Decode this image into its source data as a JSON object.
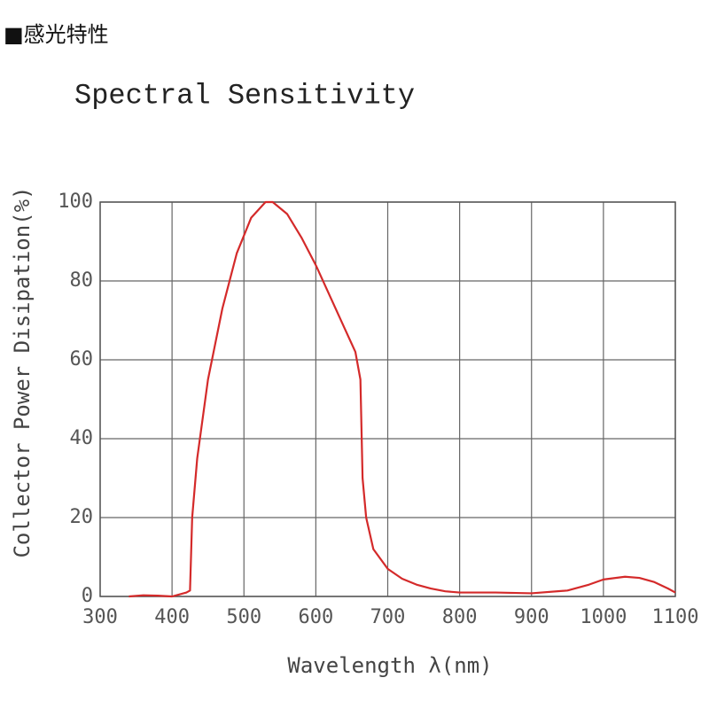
{
  "header": "■感光特性",
  "chart_data": {
    "type": "line",
    "title": "Spectral Sensitivity",
    "x_label": "Wavelength λ(nm)",
    "y_label": "Collector Power Disipation(%)",
    "x": [
      340,
      360,
      380,
      400,
      420,
      425,
      428,
      435,
      450,
      470,
      490,
      510,
      530,
      540,
      560,
      580,
      600,
      620,
      640,
      655,
      662,
      665,
      670,
      680,
      700,
      720,
      740,
      760,
      780,
      800,
      850,
      900,
      950,
      980,
      1000,
      1030,
      1050,
      1070,
      1090,
      1100
    ],
    "series": [
      {
        "name": "Spectral Sensitivity",
        "color": "#d42a2a",
        "values": [
          0,
          0.3,
          0.2,
          0,
          1,
          1.5,
          20,
          35,
          55,
          73,
          87,
          96,
          100,
          100,
          97,
          91,
          84,
          76,
          68,
          62,
          55,
          30,
          20,
          12,
          7,
          4.5,
          3,
          2,
          1.3,
          1,
          1,
          0.8,
          1.5,
          3,
          4.3,
          5,
          4.7,
          3.7,
          2,
          1
        ]
      }
    ],
    "xlim": [
      300,
      1100
    ],
    "ylim": [
      0,
      100
    ],
    "xticks": [
      300,
      400,
      500,
      600,
      700,
      800,
      900,
      1000,
      1100
    ],
    "yticks": [
      0,
      20,
      40,
      60,
      80,
      100
    ],
    "grid": true
  }
}
